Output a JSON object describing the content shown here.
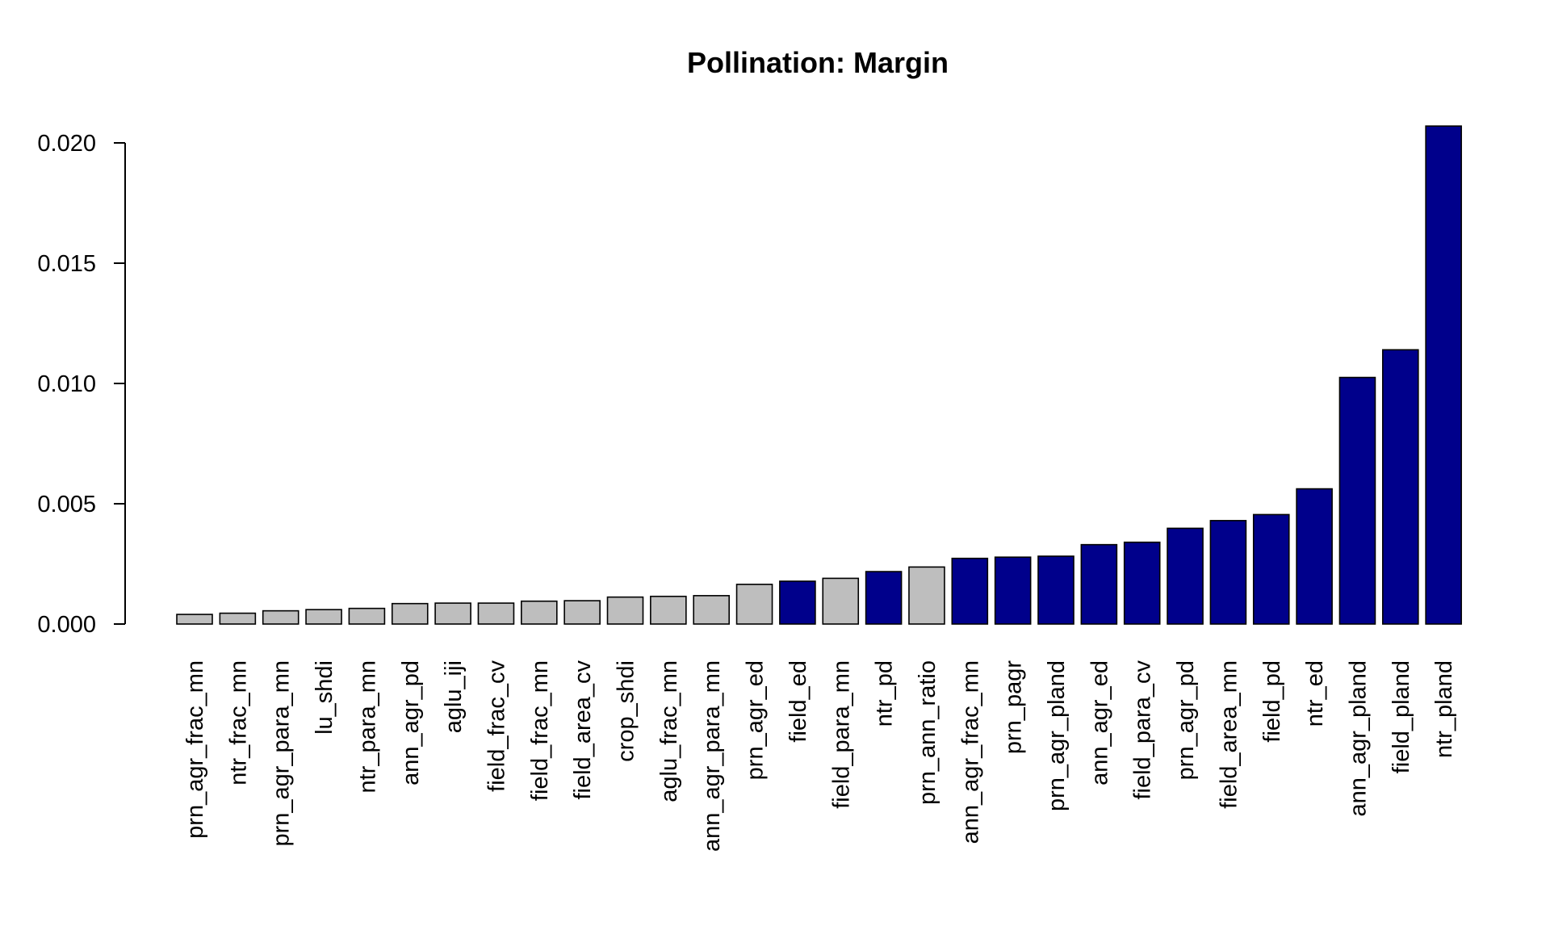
{
  "chart_data": {
    "type": "bar",
    "title": "Pollination: Margin",
    "xlabel": "",
    "ylabel": "",
    "ylim": [
      0,
      0.02
    ],
    "yticks": [
      "0.000",
      "0.005",
      "0.010",
      "0.015",
      "0.020"
    ],
    "ytick_values": [
      0,
      0.005,
      0.01,
      0.015,
      0.02
    ],
    "colors": {
      "significant": "#00008B",
      "not_significant": "#BEBEBE",
      "edge": "#000000"
    },
    "categories": [
      "prn_agr_frac_mn",
      "ntr_frac_mn",
      "prn_agr_para_mn",
      "lu_shdi",
      "ntr_para_mn",
      "ann_agr_pd",
      "aglu_iji",
      "field_frac_cv",
      "field_frac_mn",
      "field_area_cv",
      "crop_shdi",
      "aglu_frac_mn",
      "ann_agr_para_mn",
      "prn_agr_ed",
      "field_ed",
      "field_para_mn",
      "ntr_pd",
      "prn_ann_ratio",
      "ann_agr_frac_mn",
      "prn_pagr",
      "prn_agr_pland",
      "ann_agr_ed",
      "field_para_cv",
      "prn_agr_pd",
      "field_area_mn",
      "field_pd",
      "ntr_ed",
      "ann_agr_pland",
      "field_pland",
      "ntr_pland"
    ],
    "values": [
      0.0004,
      0.00045,
      0.00055,
      0.0006,
      0.00065,
      0.00085,
      0.00087,
      0.00087,
      0.00095,
      0.00097,
      0.00112,
      0.00115,
      0.00118,
      0.00165,
      0.00178,
      0.0019,
      0.00218,
      0.00237,
      0.00273,
      0.00278,
      0.00282,
      0.0033,
      0.0034,
      0.00398,
      0.0043,
      0.00455,
      0.00562,
      0.01025,
      0.0114,
      0.0207
    ],
    "significant": [
      false,
      false,
      false,
      false,
      false,
      false,
      false,
      false,
      false,
      false,
      false,
      false,
      false,
      false,
      true,
      false,
      true,
      false,
      true,
      true,
      true,
      true,
      true,
      true,
      true,
      true,
      true,
      true,
      true,
      true
    ]
  }
}
